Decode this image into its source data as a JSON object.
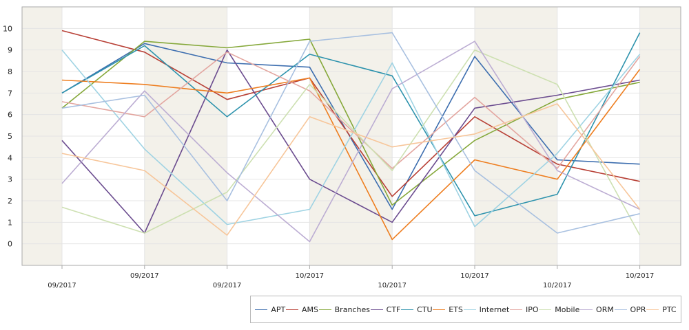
{
  "chart_data": {
    "type": "line",
    "categories": [
      "09/2017",
      "09/2017",
      "09/2017",
      "10/2017",
      "10/2017",
      "10/2017",
      "10/2017",
      "10/2017"
    ],
    "ylim": [
      -1,
      11
    ],
    "yticks": [
      0,
      1,
      2,
      3,
      4,
      5,
      6,
      7,
      8,
      9,
      10
    ],
    "grid": true,
    "legend_position": "bottom-right",
    "series": [
      {
        "name": "APT",
        "color": "#3d6eaf",
        "values": [
          7.0,
          9.3,
          8.4,
          8.2,
          1.6,
          8.7,
          3.9,
          3.7
        ]
      },
      {
        "name": "AMS",
        "color": "#b84036",
        "values": [
          9.9,
          8.9,
          6.7,
          7.7,
          2.2,
          5.9,
          3.7,
          2.9
        ]
      },
      {
        "name": "Branches",
        "color": "#85a83a",
        "values": [
          6.3,
          9.4,
          9.1,
          9.5,
          1.8,
          4.8,
          6.7,
          7.5
        ]
      },
      {
        "name": "CTF",
        "color": "#6b4c8f",
        "values": [
          4.8,
          0.5,
          9.0,
          3.0,
          1.0,
          6.3,
          6.9,
          7.6
        ]
      },
      {
        "name": "CTU",
        "color": "#2e93ad",
        "values": [
          7.0,
          9.2,
          5.9,
          8.8,
          7.8,
          1.3,
          2.3,
          9.8
        ]
      },
      {
        "name": "ETS",
        "color": "#ee7e20",
        "values": [
          7.6,
          7.4,
          7.0,
          7.7,
          0.2,
          3.9,
          3.0,
          8.1
        ]
      },
      {
        "name": "Internet",
        "color": "#9fd3e3",
        "values": [
          9.0,
          4.4,
          0.9,
          1.6,
          8.4,
          0.8,
          4.2,
          8.8
        ]
      },
      {
        "name": "IPO",
        "color": "#e3a6a0",
        "values": [
          6.6,
          5.9,
          8.9,
          7.1,
          3.5,
          6.8,
          3.5,
          8.7
        ]
      },
      {
        "name": "Mobile",
        "color": "#cde0b1",
        "values": [
          1.7,
          0.5,
          2.4,
          7.4,
          3.4,
          9.0,
          7.4,
          0.4
        ]
      },
      {
        "name": "ORM",
        "color": "#bcadd3",
        "values": [
          2.8,
          7.1,
          3.3,
          0.1,
          7.2,
          9.4,
          3.4,
          1.6
        ]
      },
      {
        "name": "OPR",
        "color": "#a8c0e0",
        "values": [
          6.3,
          6.9,
          2.0,
          9.4,
          9.8,
          3.4,
          0.5,
          1.4
        ]
      },
      {
        "name": "PTC",
        "color": "#f7c69a",
        "values": [
          4.2,
          3.4,
          0.4,
          5.9,
          4.5,
          5.1,
          6.5,
          1.6
        ]
      }
    ]
  },
  "colors": {
    "band": "#f3f1ea",
    "grid": "#e4e4e4",
    "axis": "#a9a9a9"
  }
}
